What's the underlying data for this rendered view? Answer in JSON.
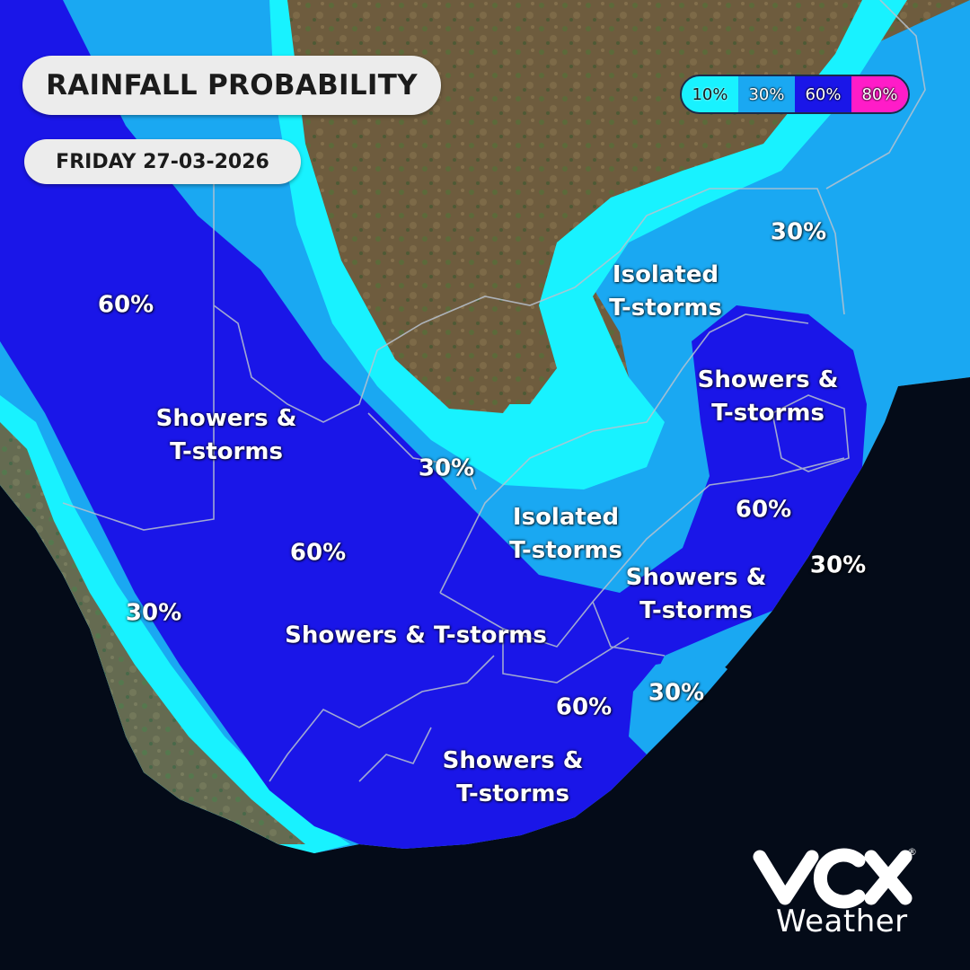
{
  "header": {
    "title": "RAINFALL PROBABILITY",
    "date": "FRIDAY 27-03-2026"
  },
  "legend": [
    {
      "label": "10%",
      "color": "#18f2ff",
      "text_color": "#1a1a1a"
    },
    {
      "label": "30%",
      "color": "#1aa8f2",
      "text_color": "#ffffff"
    },
    {
      "label": "60%",
      "color": "#1a16e8",
      "text_color": "#ffffff"
    },
    {
      "label": "80%",
      "color": "#ff1cc8",
      "text_color": "#ffffff"
    }
  ],
  "map_labels": {
    "west_60": "60%",
    "west_showers": [
      "Showers &",
      "T-storms"
    ],
    "central_30": "30%",
    "central_60": "60%",
    "central_showers": "Showers & T-storms",
    "southwest_30": "30%",
    "northeast_30": "30%",
    "northeast_isolated": [
      "Isolated",
      "T-storms"
    ],
    "east_showers": [
      "Showers &",
      "T-storms"
    ],
    "middle_isolated": [
      "Isolated",
      "T-storms"
    ],
    "east_60": "60%",
    "southeast_showers": [
      "Showers &",
      "T-storms"
    ],
    "east_30": "30%",
    "south_60": "60%",
    "south_showers": [
      "Showers &",
      "T-storms"
    ],
    "southeast_30": "30%"
  },
  "brand": {
    "text": "Weather",
    "registered": "®",
    "logo_icon": "vox-logo-icon"
  }
}
